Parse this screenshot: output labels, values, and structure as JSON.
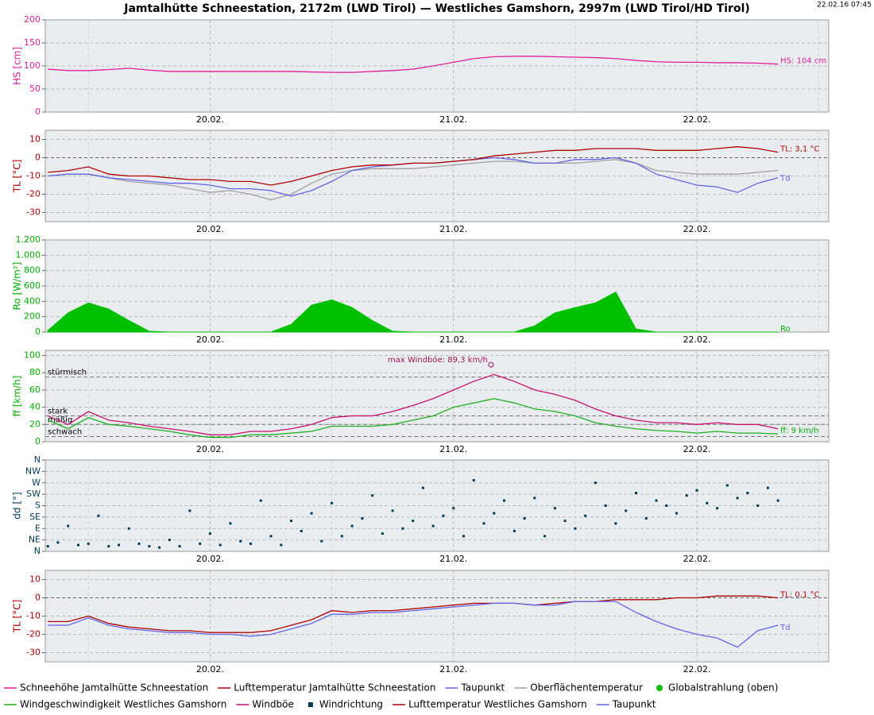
{
  "title": "Jamtalhütte Schneestation, 2172m (LWD Tirol) — Westliches Gamshorn, 2997m (LWD Tirol/HD Tirol)",
  "timestamp": "22.02.16 07:45",
  "chart_data": [
    {
      "type": "line",
      "ylabel": "HS [cm]",
      "axis_color": "#e0209a",
      "xlim": [
        7.75,
        85
      ],
      "ylim": [
        0,
        200
      ],
      "yticks": [
        0,
        50,
        100,
        150,
        200
      ],
      "xticks": [
        {
          "value": 24,
          "label": "20.02."
        },
        {
          "value": 48,
          "label": "21.02."
        },
        {
          "value": 72,
          "label": "22.02."
        }
      ],
      "xminorticks": [
        12,
        36,
        60,
        84
      ],
      "grid": true,
      "x": [
        8,
        10,
        12,
        14,
        16,
        18,
        20,
        22,
        24,
        26,
        28,
        30,
        32,
        34,
        36,
        38,
        40,
        42,
        44,
        46,
        48,
        50,
        52,
        54,
        56,
        58,
        60,
        62,
        64,
        66,
        68,
        70,
        72,
        74,
        76,
        78,
        80
      ],
      "series": [
        {
          "name": "Schneehöhe Jamtalhütte Schneestation",
          "color": "#e0209a",
          "values": [
            93,
            90,
            90,
            92,
            95,
            91,
            88,
            88,
            88,
            88,
            88,
            88,
            88,
            87,
            86,
            86,
            88,
            90,
            93,
            100,
            108,
            116,
            120,
            121,
            121,
            120,
            119,
            118,
            116,
            112,
            109,
            108,
            108,
            107,
            107,
            106,
            104
          ]
        }
      ],
      "annotations": [
        {
          "text": "HS: 104 cm",
          "x": 80,
          "y": 104,
          "color": "#e0209a"
        }
      ]
    },
    {
      "type": "line",
      "ylabel": "TL [°C]",
      "axis_color": "#b00000",
      "xlim": [
        7.75,
        85
      ],
      "ylim": [
        -35,
        15
      ],
      "yticks": [
        -30,
        -20,
        -10,
        0,
        10
      ],
      "xticks": [
        {
          "value": 24,
          "label": "20.02."
        },
        {
          "value": 48,
          "label": "21.02."
        },
        {
          "value": 72,
          "label": "22.02."
        }
      ],
      "xminorticks": [
        12,
        36,
        60,
        84
      ],
      "grid": true,
      "x": [
        8,
        10,
        12,
        14,
        16,
        18,
        20,
        22,
        24,
        26,
        28,
        30,
        32,
        34,
        36,
        38,
        40,
        42,
        44,
        46,
        48,
        50,
        52,
        54,
        56,
        58,
        60,
        62,
        64,
        66,
        68,
        70,
        72,
        74,
        76,
        78,
        80
      ],
      "series": [
        {
          "name": "Oberflächentemperatur",
          "color": "#a0a0a0",
          "values": [
            -10,
            -9,
            -9,
            -11,
            -13,
            -14,
            -15,
            -17,
            -19,
            -18,
            -20,
            -23,
            -20,
            -14,
            -9,
            -7,
            -6,
            -6,
            -6,
            -5,
            -4,
            -3,
            -2,
            -2,
            -3,
            -3,
            -3,
            -2,
            -1,
            -3,
            -7,
            -8,
            -9,
            -9,
            -9,
            -8,
            -7
          ]
        },
        {
          "name": "Taupunkt",
          "color": "#6464e6",
          "values": [
            -10,
            -9,
            -9,
            -11,
            -12,
            -13,
            -14,
            -14,
            -15,
            -17,
            -17,
            -18,
            -21,
            -18,
            -13,
            -7,
            -5,
            -4,
            -3,
            -3,
            -2,
            -1,
            0,
            -1,
            -3,
            -3,
            -1,
            -1,
            0,
            -3,
            -9,
            -12,
            -15,
            -16,
            -19,
            -14,
            -11
          ]
        },
        {
          "name": "Lufttemperatur Jamtalhütte Schneestation",
          "color": "#b00000",
          "values": [
            -8,
            -7,
            -5,
            -9,
            -10,
            -10,
            -11,
            -12,
            -12,
            -13,
            -13,
            -15,
            -13,
            -10,
            -7,
            -5,
            -4,
            -4,
            -3,
            -3,
            -2,
            -1,
            1,
            2,
            3,
            4,
            4,
            5,
            5,
            5,
            4,
            4,
            4,
            5,
            6,
            5,
            3
          ]
        }
      ],
      "annotations": [
        {
          "text": "TL: 3,1 °C",
          "x": 80,
          "y": 3.1,
          "color": "#b00000"
        },
        {
          "text": "Td",
          "x": 80,
          "y": -13,
          "color": "#6464e6"
        }
      ]
    },
    {
      "type": "area",
      "ylabel": "Ro [W/m²]",
      "axis_color": "#00b000",
      "xlim": [
        7.75,
        85
      ],
      "ylim": [
        0,
        1200
      ],
      "yticks": [
        0,
        200,
        400,
        600,
        800,
        {
          "value": 1000,
          "label": "1.000"
        },
        {
          "value": 1200,
          "label": "1.200"
        }
      ],
      "xticks": [
        {
          "value": 24,
          "label": "20.02."
        },
        {
          "value": 48,
          "label": "21.02."
        },
        {
          "value": 72,
          "label": "22.02."
        }
      ],
      "xminorticks": [
        12,
        36,
        60,
        84
      ],
      "grid": true,
      "x": [
        8,
        10,
        12,
        14,
        16,
        18,
        20,
        22,
        24,
        26,
        28,
        30,
        32,
        34,
        36,
        38,
        40,
        42,
        44,
        46,
        48,
        50,
        52,
        54,
        56,
        58,
        60,
        62,
        64,
        66,
        68,
        70,
        72,
        74,
        76,
        78,
        80
      ],
      "series": [
        {
          "name": "Globalstrahlung (oben)",
          "color": "#00c000",
          "values": [
            20,
            250,
            380,
            300,
            150,
            10,
            0,
            0,
            0,
            0,
            0,
            0,
            100,
            350,
            420,
            320,
            150,
            10,
            0,
            0,
            0,
            0,
            0,
            0,
            80,
            250,
            320,
            380,
            520,
            40,
            0,
            0,
            0,
            0,
            0,
            0,
            0
          ]
        }
      ],
      "annotations": [
        {
          "text": "Ro",
          "x": 80,
          "y": 0,
          "color": "#00b000"
        }
      ]
    },
    {
      "type": "line",
      "ylabel": "ff [km/h]",
      "axis_color": "#00b000",
      "xlim": [
        7.75,
        85
      ],
      "ylim": [
        0,
        106
      ],
      "yticks": [
        0,
        20,
        40,
        60,
        80,
        100
      ],
      "xticks": [
        {
          "value": 24,
          "label": "20.02."
        },
        {
          "value": 48,
          "label": "21.02."
        },
        {
          "value": 72,
          "label": "22.02."
        }
      ],
      "xminorticks": [
        12,
        36,
        60,
        84
      ],
      "grid": true,
      "x": [
        8,
        10,
        12,
        14,
        16,
        18,
        20,
        22,
        24,
        26,
        28,
        30,
        32,
        34,
        36,
        38,
        40,
        42,
        44,
        46,
        48,
        50,
        52,
        54,
        56,
        58,
        60,
        62,
        64,
        66,
        68,
        70,
        72,
        74,
        76,
        78,
        80
      ],
      "thresholds": [
        {
          "label": "stürmisch",
          "value": 75
        },
        {
          "label": "stark",
          "value": 30
        },
        {
          "label": "mäßig",
          "value": 20
        },
        {
          "label": "schwach",
          "value": 6
        }
      ],
      "series": [
        {
          "name": "Windgeschwindigkeit Westliches Gamshorn",
          "color": "#20b020",
          "values": [
            25,
            15,
            28,
            20,
            18,
            15,
            12,
            8,
            5,
            5,
            8,
            8,
            10,
            12,
            18,
            18,
            18,
            20,
            25,
            30,
            40,
            45,
            50,
            45,
            38,
            35,
            30,
            22,
            18,
            15,
            13,
            12,
            10,
            12,
            10,
            10,
            9
          ]
        },
        {
          "name": "Windböe",
          "color": "#c8106e",
          "values": [
            30,
            20,
            35,
            25,
            22,
            18,
            15,
            12,
            8,
            8,
            12,
            12,
            15,
            20,
            28,
            30,
            30,
            35,
            42,
            50,
            60,
            70,
            78,
            70,
            60,
            55,
            48,
            38,
            30,
            25,
            22,
            22,
            20,
            22,
            20,
            20,
            15
          ]
        }
      ],
      "annotations": [
        {
          "text": "max Windböe: 89,3 km/h",
          "x": 51.7,
          "y": 89.3,
          "color": "#a0105a",
          "marker": true
        },
        {
          "text": "ff: 9 km/h",
          "x": 80,
          "y": 9,
          "color": "#00b000"
        }
      ]
    },
    {
      "type": "scatter",
      "ylabel": "dd [°]",
      "axis_color": "#003a55",
      "xlim": [
        7.75,
        85
      ],
      "ylim": [
        0,
        360
      ],
      "yticks": [
        {
          "value": 0,
          "label": "N"
        },
        {
          "value": 45,
          "label": "NE"
        },
        {
          "value": 90,
          "label": "E"
        },
        {
          "value": 135,
          "label": "SE"
        },
        {
          "value": 180,
          "label": "S"
        },
        {
          "value": 225,
          "label": "SW"
        },
        {
          "value": 270,
          "label": "W"
        },
        {
          "value": 315,
          "label": "NW"
        },
        {
          "value": 360,
          "label": "N"
        }
      ],
      "xticks": [
        {
          "value": 24,
          "label": "20.02."
        },
        {
          "value": 48,
          "label": "21.02."
        },
        {
          "value": 72,
          "label": "22.02."
        }
      ],
      "xminorticks": [
        12,
        36,
        60,
        84
      ],
      "grid": true,
      "x": [
        8,
        9,
        10,
        11,
        12,
        13,
        14,
        15,
        16,
        17,
        18,
        19,
        20,
        21,
        22,
        23,
        24,
        25,
        26,
        27,
        28,
        29,
        30,
        31,
        32,
        33,
        34,
        35,
        36,
        37,
        38,
        39,
        40,
        41,
        42,
        43,
        44,
        45,
        46,
        47,
        48,
        49,
        50,
        51,
        52,
        53,
        54,
        55,
        56,
        57,
        58,
        59,
        60,
        61,
        62,
        63,
        64,
        65,
        66,
        67,
        68,
        69,
        70,
        71,
        72,
        73,
        74,
        75,
        76,
        77,
        78,
        79,
        80
      ],
      "series": [
        {
          "name": "Windrichtung",
          "color": "#003a55",
          "values": [
            20,
            35,
            100,
            25,
            30,
            140,
            20,
            25,
            90,
            30,
            20,
            15,
            45,
            20,
            160,
            30,
            70,
            25,
            110,
            40,
            30,
            200,
            60,
            25,
            120,
            80,
            150,
            40,
            190,
            60,
            100,
            130,
            220,
            70,
            160,
            90,
            120,
            250,
            100,
            140,
            170,
            60,
            280,
            110,
            150,
            200,
            80,
            130,
            210,
            60,
            170,
            120,
            90,
            140,
            270,
            180,
            110,
            160,
            230,
            130,
            200,
            180,
            150,
            220,
            240,
            190,
            170,
            260,
            210,
            230,
            180,
            250,
            200
          ]
        }
      ]
    },
    {
      "type": "line",
      "ylabel": "TL [°C]",
      "axis_color": "#b00000",
      "xlim": [
        7.75,
        85
      ],
      "ylim": [
        -35,
        15
      ],
      "yticks": [
        -30,
        -20,
        -10,
        0,
        10
      ],
      "xticks": [
        {
          "value": 24,
          "label": "20.02."
        },
        {
          "value": 48,
          "label": "21.02."
        },
        {
          "value": 72,
          "label": "22.02."
        }
      ],
      "xminorticks": [
        12,
        36,
        60,
        84
      ],
      "grid": true,
      "x": [
        8,
        10,
        12,
        14,
        16,
        18,
        20,
        22,
        24,
        26,
        28,
        30,
        32,
        34,
        36,
        38,
        40,
        42,
        44,
        46,
        48,
        50,
        52,
        54,
        56,
        58,
        60,
        62,
        64,
        66,
        68,
        70,
        72,
        74,
        76,
        78,
        80
      ],
      "series": [
        {
          "name": "Lufttemperatur Westliches Gamshorn",
          "color": "#b00000",
          "values": [
            -13,
            -13,
            -10,
            -14,
            -16,
            -17,
            -18,
            -18,
            -19,
            -19,
            -19,
            -18,
            -15,
            -12,
            -7,
            -8,
            -7,
            -7,
            -6,
            -5,
            -4,
            -3,
            -3,
            -3,
            -4,
            -3,
            -2,
            -2,
            -1,
            -1,
            -1,
            0,
            0,
            1,
            1,
            1,
            0
          ]
        },
        {
          "name": "Taupunkt",
          "color": "#6464e6",
          "values": [
            -15,
            -15,
            -11,
            -15,
            -17,
            -18,
            -19,
            -19,
            -20,
            -20,
            -21,
            -20,
            -17,
            -14,
            -9,
            -9,
            -8,
            -8,
            -7,
            -6,
            -5,
            -4,
            -3,
            -3,
            -4,
            -4,
            -2,
            -2,
            -2,
            -8,
            -13,
            -17,
            -20,
            -22,
            -27,
            -18,
            -15
          ]
        }
      ],
      "annotations": [
        {
          "text": "TL: 0,1 °C",
          "x": 80,
          "y": 0.1,
          "color": "#b00000"
        },
        {
          "text": "Td",
          "x": 80,
          "y": -18,
          "color": "#6464e6"
        }
      ]
    }
  ]
}
